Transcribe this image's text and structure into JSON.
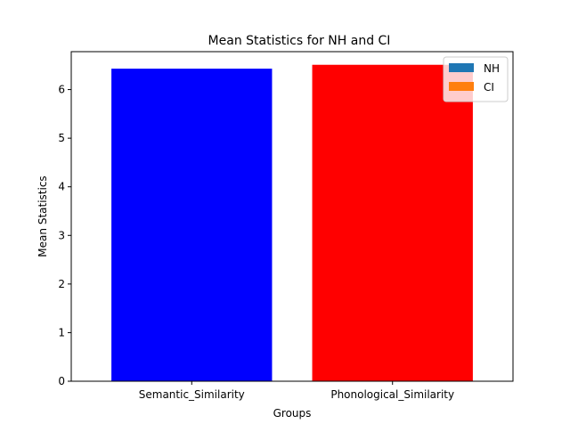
{
  "chart_data": {
    "type": "bar",
    "title": "Mean Statistics for NH and CI",
    "xlabel": "Groups",
    "ylabel": "Mean Statistics",
    "categories": [
      "Semantic_Similarity",
      "Phonological_Similarity"
    ],
    "values": [
      6.43,
      6.51
    ],
    "bar_colors": [
      "#0000ff",
      "#ff0000"
    ],
    "ylim": [
      0,
      6.78
    ],
    "yticks": [
      0,
      1,
      2,
      3,
      4,
      5,
      6
    ],
    "grid": false,
    "legend": {
      "position": "top-right",
      "entries": [
        {
          "label": "NH",
          "color": "#1f77b4"
        },
        {
          "label": "CI",
          "color": "#ff7f0e"
        }
      ]
    }
  }
}
